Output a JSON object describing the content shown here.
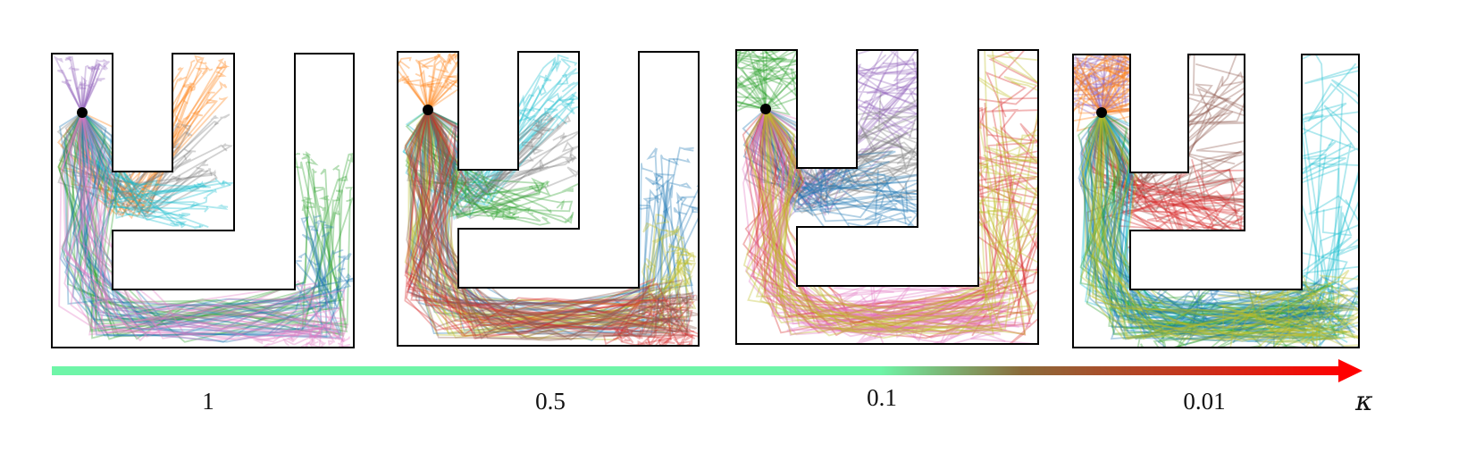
{
  "axis": {
    "symbol": "κ",
    "labels": [
      "1",
      "0.5",
      "0.1",
      "0.01"
    ],
    "gradient": {
      "start": "#6ff5a8",
      "mid": "#8a6a3a",
      "end": "#ff0000"
    }
  },
  "panels": [
    {
      "kappa": "1",
      "goals": [
        {
          "region": "A",
          "color": "#9467bd"
        },
        {
          "region": "B",
          "color": "#ff7f0e"
        },
        {
          "region": "C",
          "color": "#7f7f7f"
        },
        {
          "region": "D",
          "color": "#17becf"
        },
        {
          "region": "E",
          "color": "#2ca02c"
        },
        {
          "region": "F",
          "color": "#1f77b4"
        },
        {
          "region": "G",
          "color": "#e377c2"
        }
      ]
    },
    {
      "kappa": "0.5",
      "goals": [
        {
          "region": "A",
          "color": "#ff7f0e"
        },
        {
          "region": "B",
          "color": "#17becf"
        },
        {
          "region": "C",
          "color": "#7f7f7f"
        },
        {
          "region": "D",
          "color": "#2ca02c"
        },
        {
          "region": "E",
          "color": "#1f77b4"
        },
        {
          "region": "F",
          "color": "#bcbd22"
        },
        {
          "region": "G",
          "color": "#d62728"
        },
        {
          "region": "H",
          "color": "#8c564b"
        }
      ]
    },
    {
      "kappa": "0.1",
      "goals": [
        {
          "region": "A",
          "color": "#2ca02c"
        },
        {
          "region": "B",
          "color": "#9467bd"
        },
        {
          "region": "C",
          "color": "#7f7f7f"
        },
        {
          "region": "D",
          "color": "#1f77b4"
        },
        {
          "region": "I",
          "color": "#d62728"
        },
        {
          "region": "J",
          "color": "#e377c2"
        },
        {
          "region": "K",
          "color": "#bcbd22"
        }
      ]
    },
    {
      "kappa": "0.01",
      "goals": [
        {
          "region": "A",
          "color": "#9467bd"
        },
        {
          "region": "A2",
          "color": "#ff7f0e"
        },
        {
          "region": "L",
          "color": "#8c564b"
        },
        {
          "region": "L2",
          "color": "#d62728"
        },
        {
          "region": "M",
          "color": "#17becf"
        },
        {
          "region": "N",
          "color": "#2ca02c"
        },
        {
          "region": "O",
          "color": "#1f77b4"
        },
        {
          "region": "P",
          "color": "#bcbd22"
        }
      ]
    }
  ]
}
